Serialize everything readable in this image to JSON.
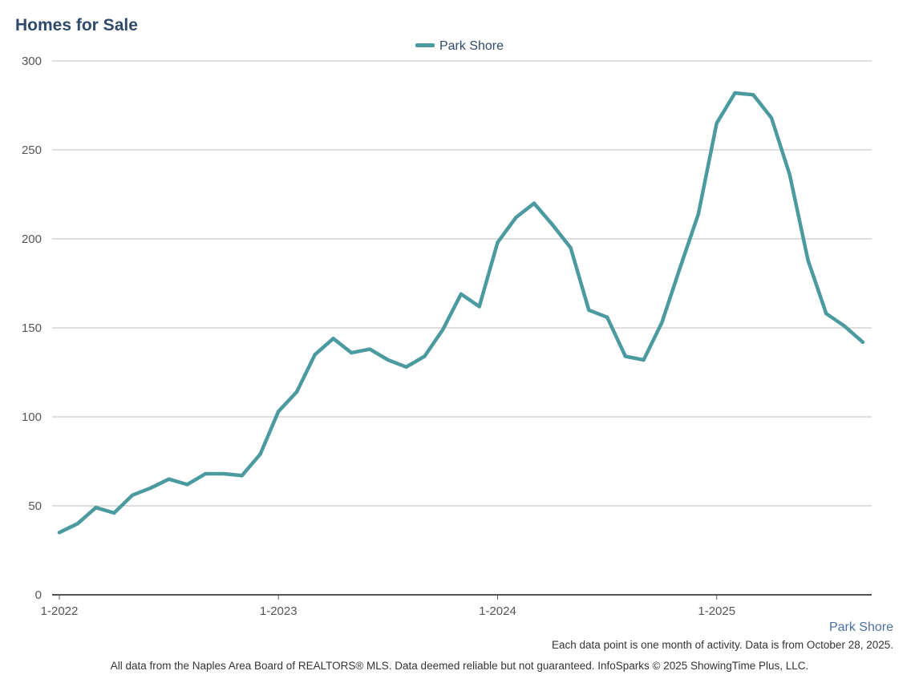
{
  "colors": {
    "series": "#4a9aa0",
    "title": "#2f4a6b",
    "grid": "#bdbdbd",
    "axis": "#555555"
  },
  "chart_data": {
    "type": "line",
    "title": "Homes for Sale",
    "xlabel": "",
    "ylabel": "",
    "ylim": [
      0,
      300
    ],
    "y_ticks": [
      "0",
      "50",
      "100",
      "150",
      "200",
      "250",
      "300"
    ],
    "x_ticks": [
      {
        "label": "1-2022",
        "index": 0
      },
      {
        "label": "1-2023",
        "index": 12
      },
      {
        "label": "1-2024",
        "index": 24
      },
      {
        "label": "1-2025",
        "index": 36
      }
    ],
    "grid": true,
    "legend_position": "top-center",
    "categories": [
      "1-2022",
      "2-2022",
      "3-2022",
      "4-2022",
      "5-2022",
      "6-2022",
      "7-2022",
      "8-2022",
      "9-2022",
      "10-2022",
      "11-2022",
      "12-2022",
      "1-2023",
      "2-2023",
      "3-2023",
      "4-2023",
      "5-2023",
      "6-2023",
      "7-2023",
      "8-2023",
      "9-2023",
      "10-2023",
      "11-2023",
      "12-2023",
      "1-2024",
      "2-2024",
      "3-2024",
      "4-2024",
      "5-2024",
      "6-2024",
      "7-2024",
      "8-2024",
      "9-2024",
      "10-2024",
      "11-2024",
      "12-2024",
      "1-2025",
      "2-2025",
      "3-2025",
      "4-2025",
      "5-2025",
      "6-2025",
      "7-2025",
      "8-2025",
      "9-2025"
    ],
    "series": [
      {
        "name": "Park Shore",
        "values": [
          35,
          40,
          49,
          46,
          56,
          60,
          65,
          62,
          68,
          68,
          67,
          79,
          103,
          114,
          135,
          144,
          136,
          138,
          132,
          128,
          134,
          149,
          169,
          162,
          198,
          212,
          220,
          208,
          195,
          160,
          156,
          134,
          132,
          153,
          184,
          214,
          265,
          282,
          281,
          268,
          236,
          188,
          158,
          151,
          142
        ]
      }
    ]
  },
  "series_caption": "Park Shore",
  "note": "Each data point is one month of activity. Data is from October 28, 2025.",
  "footer": "All data from the Naples Area Board of REALTORS® MLS. Data deemed reliable but not guaranteed. InfoSparks © 2025 ShowingTime Plus, LLC."
}
